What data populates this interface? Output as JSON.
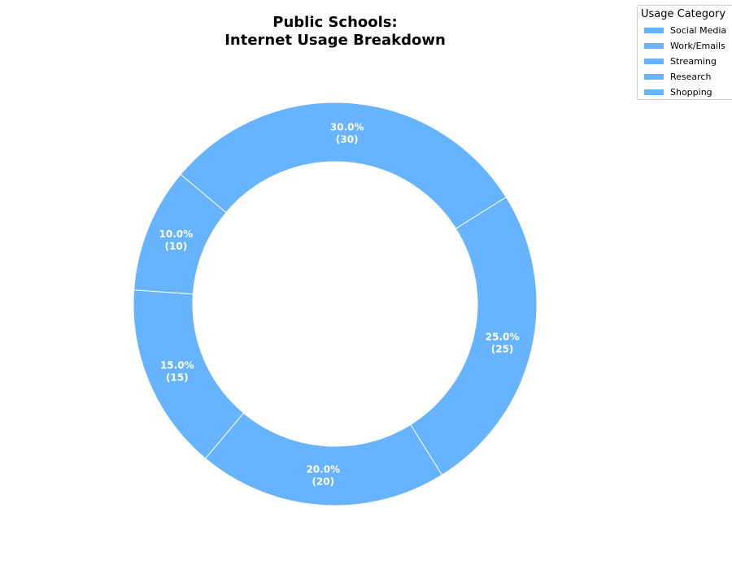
{
  "chart_data": {
    "type": "pie",
    "donut": true,
    "title_lines": [
      "Public Schools:",
      "Internet Usage Breakdown"
    ],
    "categories": [
      "Social Media",
      "Work/Emails",
      "Streaming",
      "Research",
      "Shopping"
    ],
    "values": [
      30,
      25,
      20,
      15,
      10
    ],
    "percent_labels": [
      "30.0%",
      "25.0%",
      "20.0%",
      "15.0%",
      "10.0%"
    ],
    "value_labels": [
      "(30)",
      "(25)",
      "(20)",
      "(15)",
      "(10)"
    ],
    "start_angle_deg": 140,
    "direction": "clockwise",
    "slice_color": "#66b3ff",
    "edge_color": "#ffffff",
    "legend": {
      "title": "Usage Category",
      "placement": "top-right"
    }
  }
}
